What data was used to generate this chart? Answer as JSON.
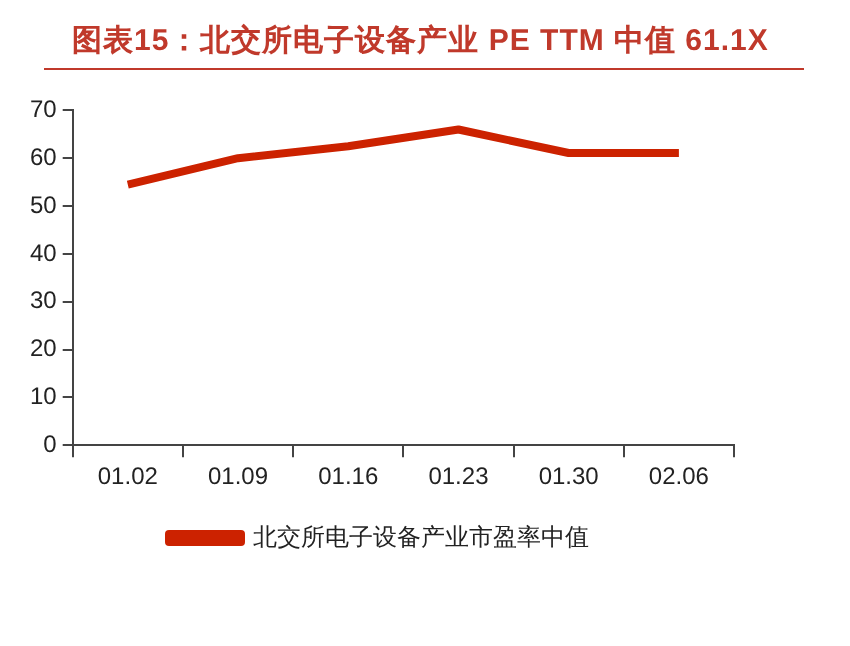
{
  "chart_data": {
    "type": "line",
    "title": "图表15：北交所电子设备产业 PE TTM 中值 61.1X",
    "categories": [
      "01.02",
      "01.09",
      "01.16",
      "01.23",
      "01.30",
      "02.06"
    ],
    "series": [
      {
        "name": "北交所电子设备产业市盈率中值",
        "color": "#cc2200",
        "values": [
          54.5,
          60,
          62.5,
          66,
          61.1,
          61.1
        ]
      }
    ],
    "ylim": [
      0,
      70
    ],
    "yticks": [
      0,
      10,
      20,
      30,
      40,
      50,
      60,
      70
    ],
    "grid": false,
    "legend": "bottom",
    "marker": "none",
    "line_style": "solid"
  }
}
